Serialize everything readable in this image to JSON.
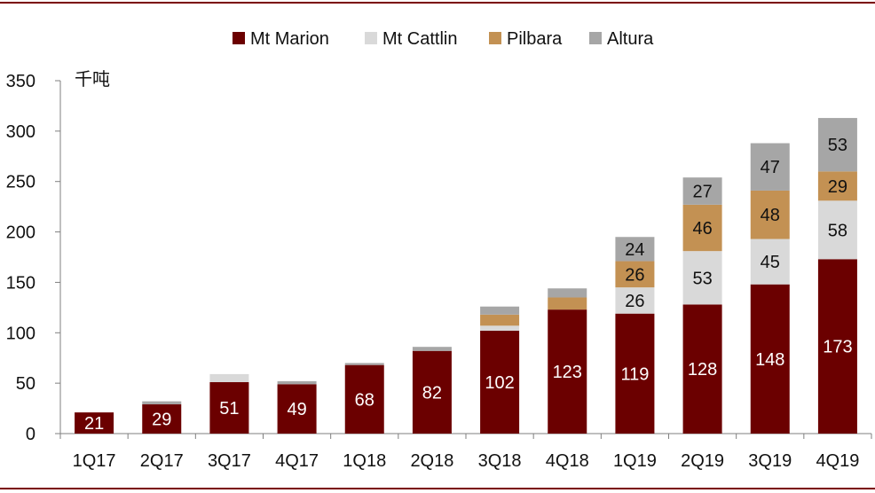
{
  "chart_data": {
    "type": "bar",
    "stacked": true,
    "unit": "千吨",
    "categories": [
      "1Q17",
      "2Q17",
      "3Q17",
      "4Q17",
      "1Q18",
      "2Q18",
      "3Q18",
      "4Q18",
      "1Q19",
      "2Q19",
      "3Q19",
      "4Q19"
    ],
    "series": [
      {
        "name": "Mt Marion",
        "color": "#6b0000",
        "label_color": "#ffffff",
        "values": [
          21,
          29,
          51,
          49,
          68,
          82,
          102,
          123,
          119,
          128,
          148,
          173
        ],
        "labels": [
          "21",
          "29",
          "51",
          "49",
          "68",
          "82",
          "102",
          "123",
          "119",
          "128",
          "148",
          "173"
        ]
      },
      {
        "name": "Mt Cattlin",
        "color": "#d9d9d9",
        "label_color": "#111111",
        "values": [
          0,
          0,
          8,
          0,
          0,
          0,
          5,
          0,
          26,
          53,
          45,
          58
        ],
        "labels": [
          "",
          "",
          "",
          "",
          "",
          "",
          "",
          "",
          "26",
          "53",
          "45",
          "58"
        ]
      },
      {
        "name": "Pilbara",
        "color": "#c39153",
        "label_color": "#111111",
        "values": [
          0,
          0,
          0,
          0,
          0,
          0,
          11,
          12,
          26,
          46,
          48,
          29
        ],
        "labels": [
          "",
          "",
          "",
          "",
          "",
          "",
          "",
          "",
          "26",
          "46",
          "48",
          "29"
        ]
      },
      {
        "name": "Altura",
        "color": "#a6a6a6",
        "label_color": "#111111",
        "values": [
          0,
          3,
          0,
          3,
          2,
          4,
          8,
          9,
          24,
          27,
          47,
          53
        ],
        "labels": [
          "",
          "",
          "",
          "",
          "",
          "",
          "",
          "",
          "24",
          "27",
          "47",
          "53"
        ]
      }
    ],
    "ylim": [
      0,
      350
    ],
    "yticks": [
      "0",
      "50",
      "100",
      "150",
      "200",
      "250",
      "300",
      "350"
    ],
    "legend_position": "top-center",
    "grid": false
  }
}
